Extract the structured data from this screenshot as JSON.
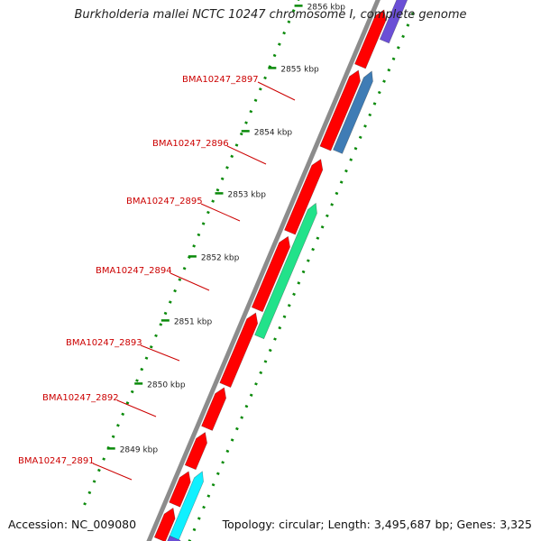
{
  "title": "Burkholderia mallei NCTC 10247 chromosome I, complete genome",
  "accession": "Accession: NC_009080",
  "summary": "Topology: circular; Length: 3,495,687 bp; Genes: 3,325",
  "colors": {
    "backbone": "#8c8c8c",
    "feature_strand": "#ff0000",
    "tick": "#0a8a0a",
    "label": "#cc0000",
    "gene_purple": "#6b4fd6",
    "gene_steelblue": "#3f7cb5",
    "gene_green": "#22e28a",
    "gene_cyan": "#10f0ff"
  },
  "kbp_ticks": [
    "2856 kbp",
    "2855 kbp",
    "2854 kbp",
    "2853 kbp",
    "2852 kbp",
    "2851 kbp",
    "2850 kbp",
    "2849 kbp"
  ],
  "genes": [
    {
      "label": "BMA10247_2897",
      "color": "#3f7cb5"
    },
    {
      "label": "BMA10247_2896",
      "color": "#ff0000"
    },
    {
      "label": "BMA10247_2895",
      "color": "#22e28a"
    },
    {
      "label": "BMA10247_2894",
      "color": "#ff0000"
    },
    {
      "label": "BMA10247_2893",
      "color": "#ff0000"
    },
    {
      "label": "BMA10247_2892",
      "color": "#ff0000"
    },
    {
      "label": "BMA10247_2891",
      "color": "#10f0ff"
    }
  ]
}
